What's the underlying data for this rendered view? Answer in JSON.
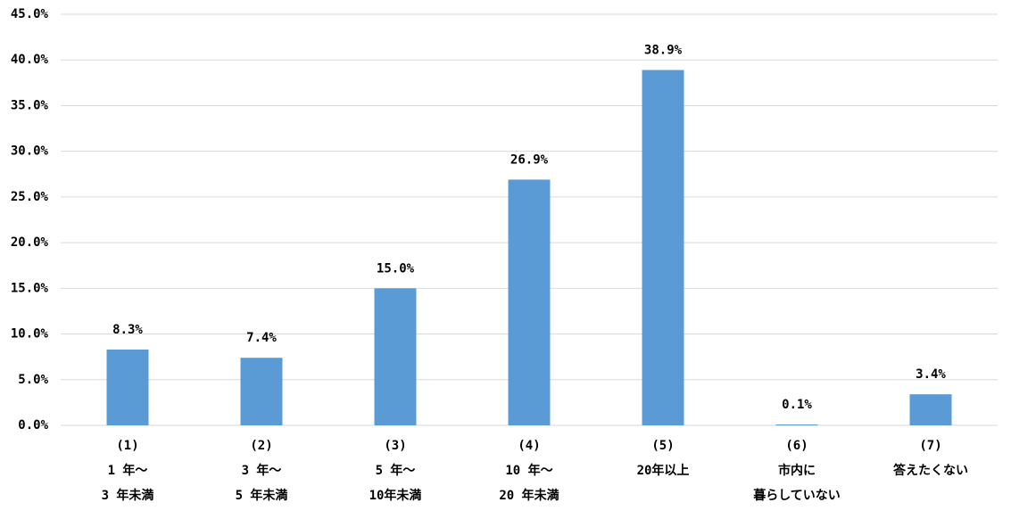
{
  "chart_data": {
    "type": "bar",
    "categories": [
      [
        "(1)",
        "1 年～",
        "3 年未満"
      ],
      [
        "(2)",
        "3 年～",
        "5 年未満"
      ],
      [
        "(3)",
        "5 年～",
        "10年未満"
      ],
      [
        "(4)",
        "10 年～",
        "20 年未満"
      ],
      [
        "(5)",
        "20年以上"
      ],
      [
        "(6)",
        "市内に",
        "暮らしていない"
      ],
      [
        "(7)",
        "答えたくない"
      ]
    ],
    "values": [
      8.3,
      7.4,
      15.0,
      26.9,
      38.9,
      0.1,
      3.4
    ],
    "value_labels": [
      "8.3%",
      "7.4%",
      "15.0%",
      "26.9%",
      "38.9%",
      "0.1%",
      "3.4%"
    ],
    "color": "#5b9bd5",
    "ylim": [
      0,
      45
    ],
    "yticks": [
      {
        "value": 0,
        "label": "0.0%"
      },
      {
        "value": 5,
        "label": "5.0%"
      },
      {
        "value": 10,
        "label": "10.0%"
      },
      {
        "value": 15,
        "label": "15.0%"
      },
      {
        "value": 20,
        "label": "20.0%"
      },
      {
        "value": 25,
        "label": "25.0%"
      },
      {
        "value": 30,
        "label": "30.0%"
      },
      {
        "value": 35,
        "label": "35.0%"
      },
      {
        "value": 40,
        "label": "40.0%"
      },
      {
        "value": 45,
        "label": "45.0%"
      }
    ],
    "grid": true
  }
}
